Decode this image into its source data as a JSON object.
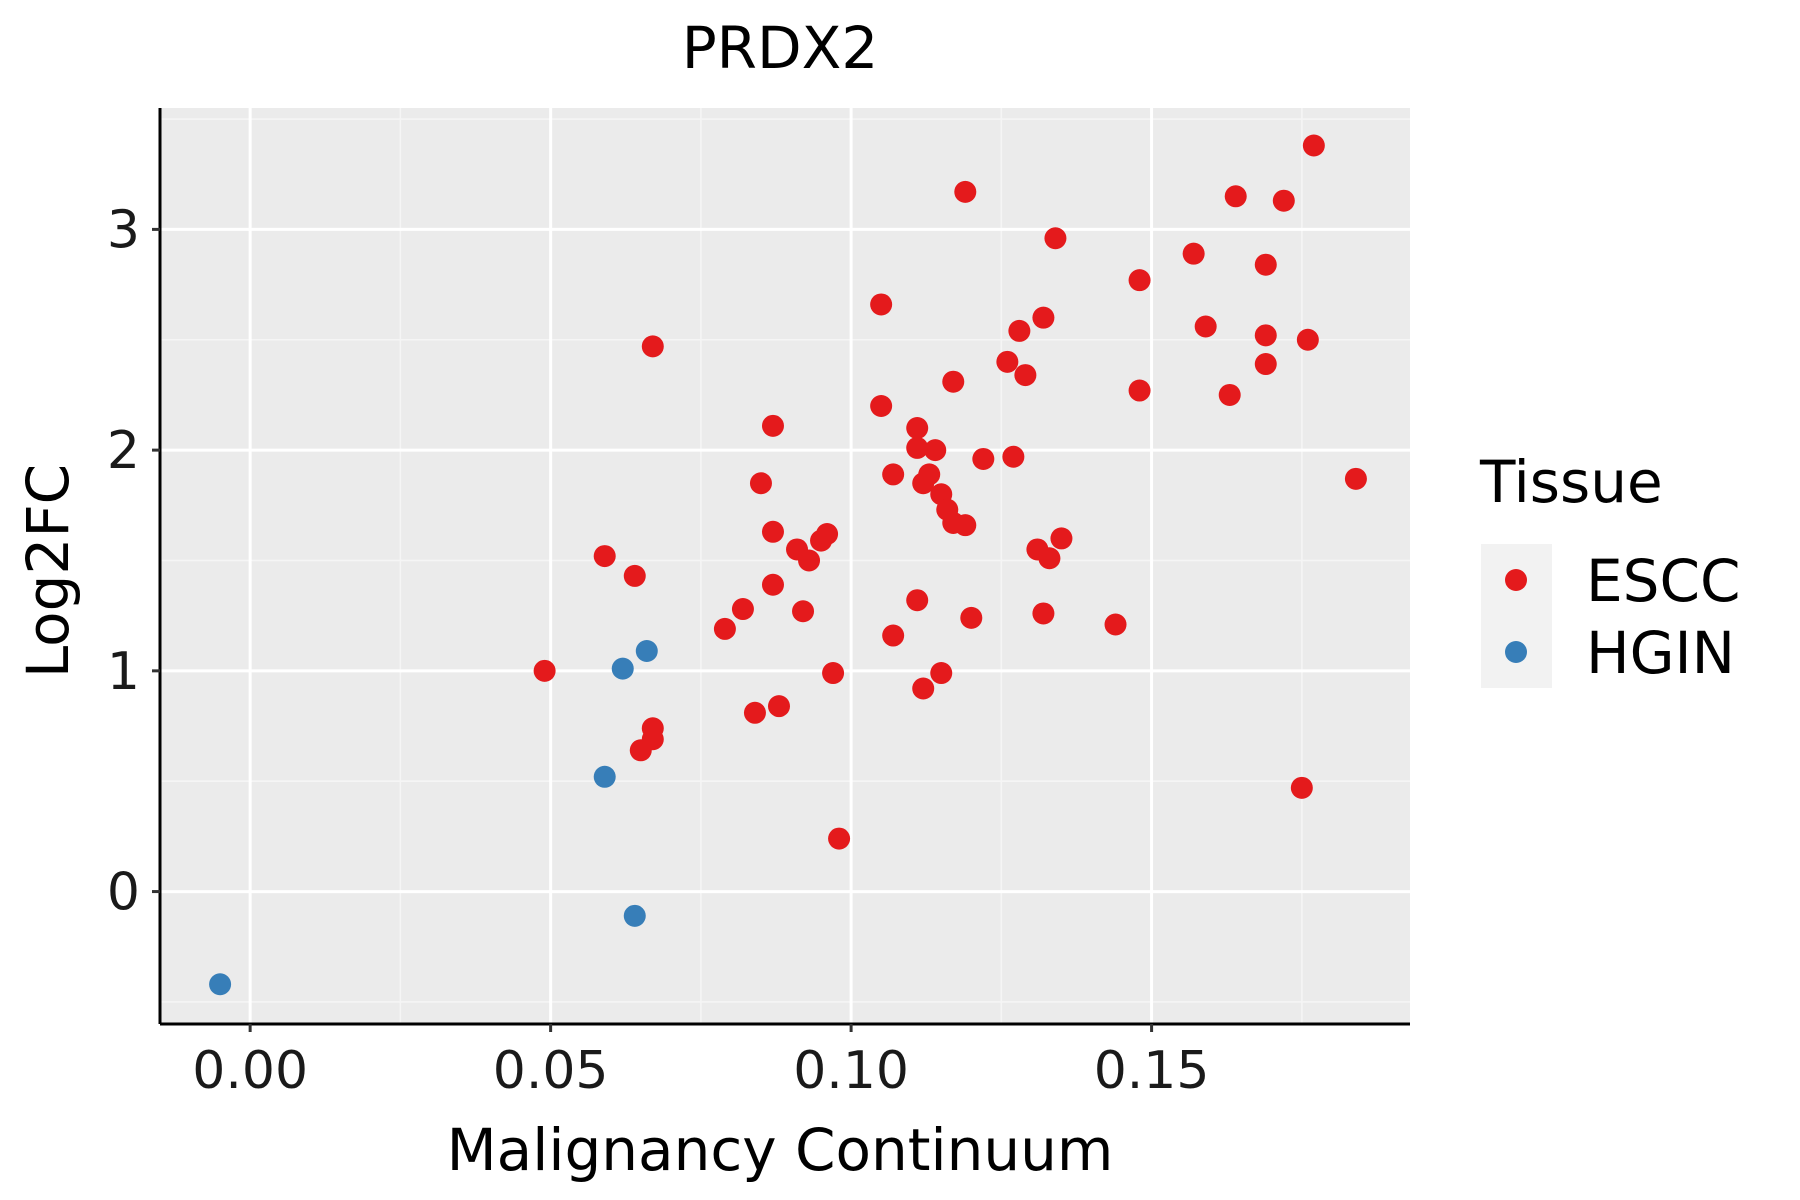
{
  "chart_data": {
    "type": "scatter",
    "title": "PRDX2",
    "xlabel": "Malignancy Continuum",
    "ylabel": "Log2FC",
    "xlim": [
      -0.015,
      0.193
    ],
    "ylim": [
      -0.6,
      3.55
    ],
    "xticks": [
      0.0,
      0.05,
      0.1,
      0.15
    ],
    "xtick_labels": [
      "0.00",
      "0.05",
      "0.10",
      "0.15"
    ],
    "yticks": [
      0,
      1,
      2,
      3
    ],
    "ytick_labels": [
      "0",
      "1",
      "2",
      "3"
    ],
    "grid": true,
    "legend_position": "right",
    "legend_title": "Tissue",
    "series": [
      {
        "name": "ESCC",
        "color": "#e41a1c",
        "points": [
          [
            0.049,
            1.0
          ],
          [
            0.059,
            1.52
          ],
          [
            0.064,
            1.43
          ],
          [
            0.065,
            0.64
          ],
          [
            0.067,
            0.74
          ],
          [
            0.067,
            0.69
          ],
          [
            0.067,
            2.47
          ],
          [
            0.079,
            1.19
          ],
          [
            0.082,
            1.28
          ],
          [
            0.084,
            0.81
          ],
          [
            0.085,
            1.85
          ],
          [
            0.087,
            1.63
          ],
          [
            0.087,
            2.11
          ],
          [
            0.087,
            1.39
          ],
          [
            0.088,
            0.84
          ],
          [
            0.091,
            1.55
          ],
          [
            0.092,
            1.27
          ],
          [
            0.093,
            1.5
          ],
          [
            0.095,
            1.59
          ],
          [
            0.096,
            1.62
          ],
          [
            0.097,
            0.99
          ],
          [
            0.098,
            0.24
          ],
          [
            0.105,
            2.2
          ],
          [
            0.105,
            2.66
          ],
          [
            0.107,
            1.89
          ],
          [
            0.107,
            1.16
          ],
          [
            0.111,
            1.32
          ],
          [
            0.111,
            2.1
          ],
          [
            0.111,
            2.01
          ],
          [
            0.112,
            1.85
          ],
          [
            0.112,
            0.92
          ],
          [
            0.113,
            1.89
          ],
          [
            0.114,
            2.0
          ],
          [
            0.115,
            0.99
          ],
          [
            0.115,
            1.8
          ],
          [
            0.116,
            1.73
          ],
          [
            0.117,
            1.67
          ],
          [
            0.117,
            2.31
          ],
          [
            0.119,
            1.66
          ],
          [
            0.119,
            3.17
          ],
          [
            0.12,
            1.24
          ],
          [
            0.122,
            1.96
          ],
          [
            0.126,
            2.4
          ],
          [
            0.127,
            1.97
          ],
          [
            0.128,
            2.54
          ],
          [
            0.129,
            2.34
          ],
          [
            0.131,
            1.55
          ],
          [
            0.132,
            2.6
          ],
          [
            0.132,
            1.26
          ],
          [
            0.133,
            1.51
          ],
          [
            0.134,
            2.96
          ],
          [
            0.135,
            1.6
          ],
          [
            0.144,
            1.21
          ],
          [
            0.148,
            2.27
          ],
          [
            0.148,
            2.77
          ],
          [
            0.157,
            2.89
          ],
          [
            0.159,
            2.56
          ],
          [
            0.163,
            2.25
          ],
          [
            0.164,
            3.15
          ],
          [
            0.169,
            2.84
          ],
          [
            0.169,
            2.52
          ],
          [
            0.169,
            2.39
          ],
          [
            0.172,
            3.13
          ],
          [
            0.175,
            0.47
          ],
          [
            0.176,
            2.5
          ],
          [
            0.177,
            3.38
          ],
          [
            0.184,
            1.87
          ]
        ]
      },
      {
        "name": "HGIN",
        "color": "#377eb8",
        "points": [
          [
            -0.005,
            -0.42
          ],
          [
            0.059,
            0.52
          ],
          [
            0.062,
            1.01
          ],
          [
            0.064,
            -0.11
          ],
          [
            0.066,
            1.09
          ]
        ]
      }
    ]
  },
  "colors": {
    "panel_background": "#ebebeb",
    "grid_major": "#ffffff",
    "grid_minor": "#f5f5f5",
    "axis_line": "#000000",
    "legend_key_background": "#f2f2f2"
  }
}
